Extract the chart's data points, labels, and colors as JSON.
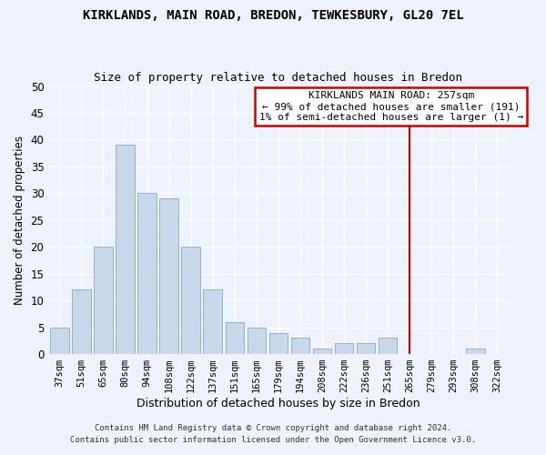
{
  "title": "KIRKLANDS, MAIN ROAD, BREDON, TEWKESBURY, GL20 7EL",
  "subtitle": "Size of property relative to detached houses in Bredon",
  "xlabel": "Distribution of detached houses by size in Bredon",
  "ylabel": "Number of detached properties",
  "footnote1": "Contains HM Land Registry data © Crown copyright and database right 2024.",
  "footnote2": "Contains public sector information licensed under the Open Government Licence v3.0.",
  "bar_labels": [
    "37sqm",
    "51sqm",
    "65sqm",
    "80sqm",
    "94sqm",
    "108sqm",
    "122sqm",
    "137sqm",
    "151sqm",
    "165sqm",
    "179sqm",
    "194sqm",
    "208sqm",
    "222sqm",
    "236sqm",
    "251sqm",
    "265sqm",
    "279sqm",
    "293sqm",
    "308sqm",
    "322sqm"
  ],
  "bar_values": [
    5,
    12,
    20,
    39,
    30,
    29,
    20,
    12,
    6,
    5,
    4,
    3,
    1,
    2,
    2,
    3,
    0,
    0,
    0,
    1,
    0
  ],
  "bar_color": "#c8d8ea",
  "bar_edge_color": "#90b4cc",
  "background_color": "#eef2fa",
  "grid_color": "#ffffff",
  "ylim": [
    0,
    50
  ],
  "yticks": [
    0,
    5,
    10,
    15,
    20,
    25,
    30,
    35,
    40,
    45,
    50
  ],
  "annotation_text": "KIRKLANDS MAIN ROAD: 257sqm\n← 99% of detached houses are smaller (191)\n1% of semi-detached houses are larger (1) →",
  "vline_x_index": 16,
  "annotation_box_color": "#ffffff",
  "annotation_box_edge_color": "#cc0000",
  "vline_color": "#cc0000",
  "title_fontsize": 10,
  "subtitle_fontsize": 9,
  "tick_fontsize": 7.5,
  "annotation_fontsize": 8,
  "ylabel_fontsize": 8.5,
  "xlabel_fontsize": 9
}
